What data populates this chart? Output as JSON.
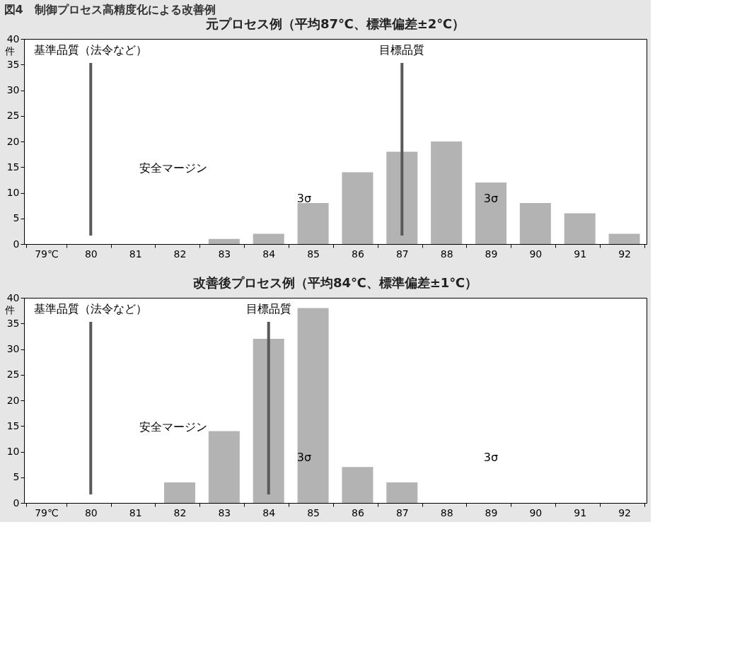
{
  "chart_data": [
    {
      "type": "bar",
      "title": "元プロセス例（平均87℃、標準偏差±2℃）",
      "ylabel": "件",
      "categories": [
        "79℃",
        "80",
        "81",
        "82",
        "83",
        "84",
        "85",
        "86",
        "87",
        "88",
        "89",
        "90",
        "91",
        "92"
      ],
      "values": [
        0,
        0,
        0,
        0,
        1,
        2,
        8,
        14,
        18,
        20,
        12,
        8,
        6,
        2
      ],
      "color": "#b3b3b3",
      "ylim": [
        0,
        40
      ],
      "yticks": [
        0,
        5,
        10,
        15,
        20,
        25,
        30,
        35,
        40
      ],
      "grid": false,
      "ref_lines": [
        {
          "axis": "x",
          "value": "80",
          "label": "基準品質（法令など）",
          "color": "#595959"
        },
        {
          "axis": "x",
          "value": "87",
          "label": "目標品質",
          "color": "#595959"
        }
      ],
      "annotations": [
        "図4　制御プロセス高精度化による改善例",
        "安全マージン",
        "3σ",
        "3σ"
      ]
    },
    {
      "type": "bar",
      "title": "改善後プロセス例（平均84℃、標準偏差±1℃）",
      "ylabel": "件",
      "categories": [
        "79℃",
        "80",
        "81",
        "82",
        "83",
        "84",
        "85",
        "86",
        "87",
        "88",
        "89",
        "90",
        "91",
        "92"
      ],
      "values": [
        0,
        0,
        0,
        4,
        14,
        32,
        38,
        7,
        4,
        0,
        0,
        0,
        0,
        0
      ],
      "color": "#b3b3b3",
      "ylim": [
        0,
        40
      ],
      "yticks": [
        0,
        5,
        10,
        15,
        20,
        25,
        30,
        35,
        40
      ],
      "grid": false,
      "ref_lines": [
        {
          "axis": "x",
          "value": "80",
          "label": "基準品質（法令など）",
          "color": "#595959"
        },
        {
          "axis": "x",
          "value": "84",
          "label": "目標品質",
          "color": "#595959"
        }
      ],
      "annotations": [
        "安全マージン",
        "3σ",
        "3σ"
      ]
    }
  ]
}
